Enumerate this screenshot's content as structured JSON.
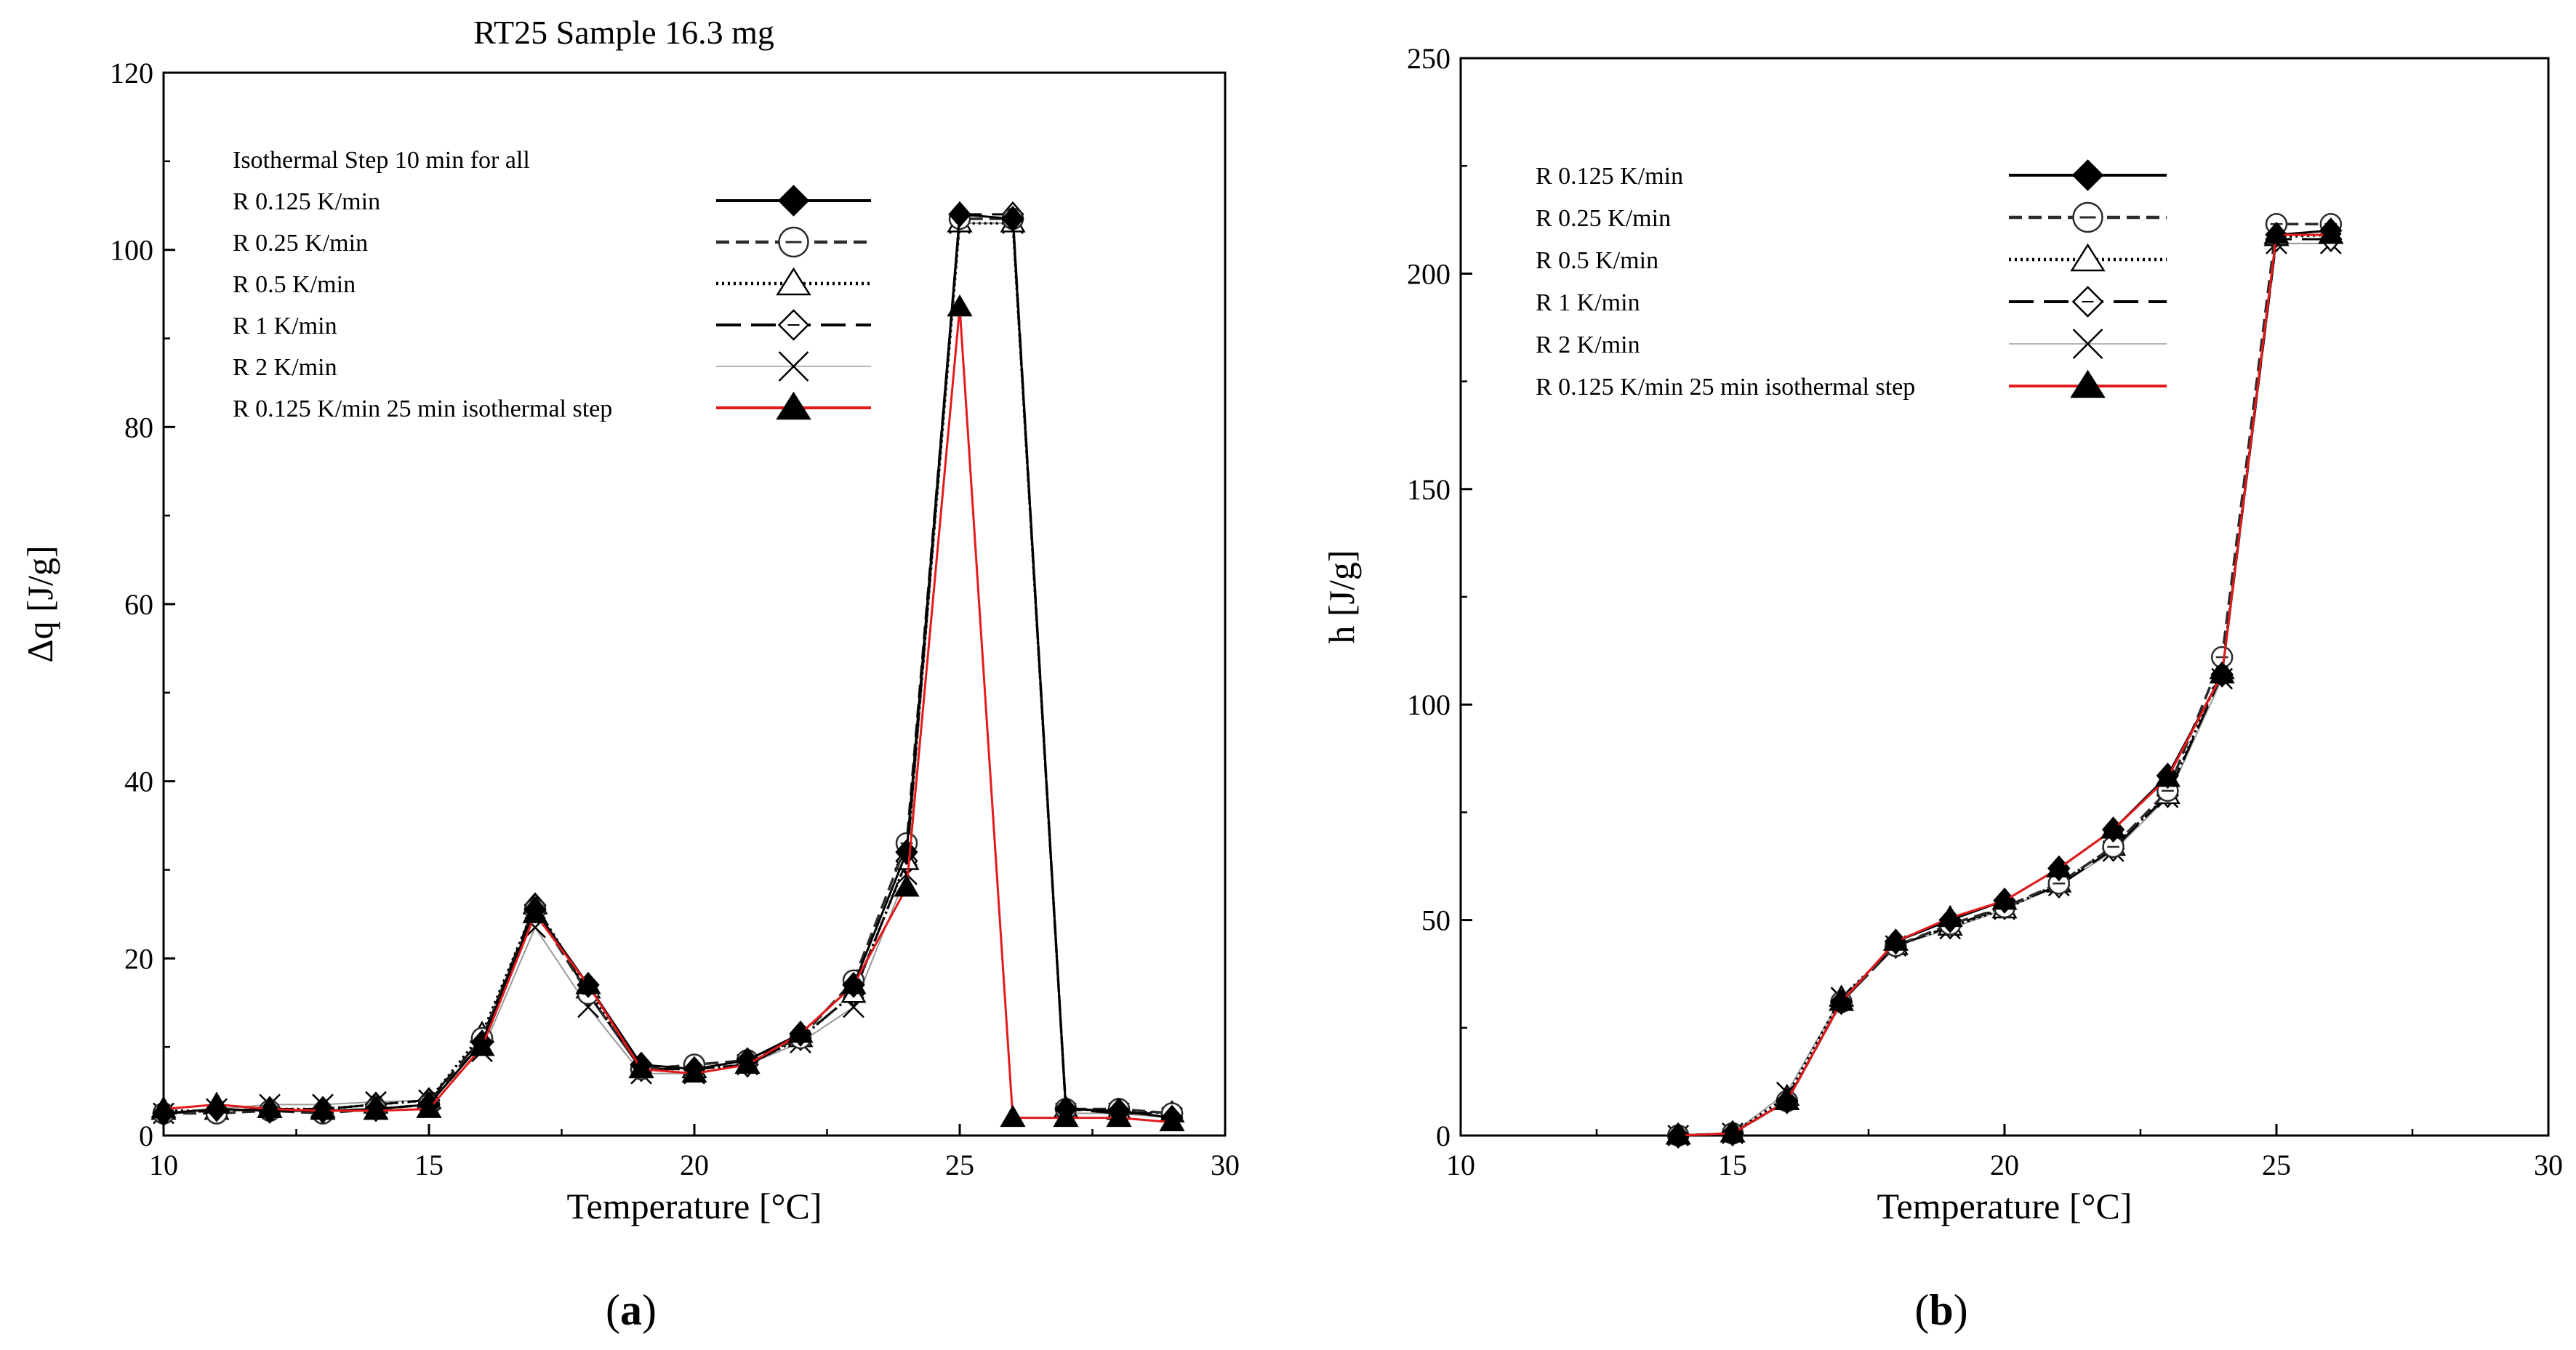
{
  "styles": {
    "0.125": {
      "color": "#000000",
      "dash": "",
      "width": 3,
      "marker": "diamond-filled"
    },
    "0.25": {
      "color": "#2b2b2b",
      "dash": "18 9",
      "width": 3.5,
      "marker": "circle-dash"
    },
    "0.5": {
      "color": "#000000",
      "dash": "3 5",
      "width": 3.5,
      "marker": "triangle-open"
    },
    "1": {
      "color": "#000000",
      "dash": "34 14",
      "width": 3,
      "marker": "diamond-open"
    },
    "2": {
      "color": "#9a9a9a",
      "dash": "",
      "width": 2,
      "marker": "cross"
    },
    "red": {
      "color": "#e31a1c",
      "dash": "",
      "width": 3,
      "marker": "triangle-filled"
    }
  },
  "chart_data": [
    {
      "id": "a",
      "type": "line",
      "panel_label": "a",
      "title": "RT25 Sample 16.3 mg",
      "xlabel": "Temperature [°C]",
      "ylabel": "Δq [J/g]",
      "xlim": [
        10,
        30
      ],
      "ylim": [
        0,
        120
      ],
      "xticks": [
        10,
        15,
        20,
        25,
        30
      ],
      "yticks": [
        0,
        20,
        40,
        60,
        80,
        100,
        120
      ],
      "legend_header": "Isothermal Step 10 min for all",
      "legend_placement": "top-left",
      "series": [
        {
          "name": "R 0.125 K/min",
          "style": "0.125",
          "x": [
            10,
            11,
            12,
            13,
            14,
            15,
            16,
            17,
            18,
            19,
            20,
            21,
            22,
            23,
            24,
            25,
            26,
            27,
            28,
            29
          ],
          "y": [
            2.5,
            3.0,
            2.8,
            2.8,
            3.0,
            3.5,
            10.5,
            25.5,
            17.0,
            8.0,
            7.5,
            8.5,
            11.5,
            17.0,
            32.0,
            104.0,
            103.5,
            3.0,
            2.8,
            2.0
          ]
        },
        {
          "name": "R 0.25 K/min",
          "style": "0.25",
          "x": [
            10,
            11,
            12,
            13,
            14,
            15,
            16,
            17,
            18,
            19,
            20,
            21,
            22,
            23,
            24,
            25,
            26,
            27,
            28,
            29
          ],
          "y": [
            2.5,
            2.5,
            2.8,
            2.5,
            3.0,
            3.5,
            11.0,
            25.5,
            16.0,
            7.5,
            8.0,
            8.5,
            11.0,
            17.5,
            33.0,
            103.5,
            103.5,
            3.0,
            3.0,
            2.5
          ]
        },
        {
          "name": "R 0.5 K/min",
          "style": "0.5",
          "x": [
            10,
            11,
            12,
            13,
            14,
            15,
            16,
            17,
            18,
            19,
            20,
            21,
            22,
            23,
            24,
            25,
            26,
            27,
            28,
            29
          ],
          "y": [
            2.8,
            2.8,
            3.0,
            3.0,
            3.5,
            4.0,
            11.5,
            26.0,
            16.5,
            7.5,
            7.5,
            8.0,
            11.0,
            16.0,
            31.0,
            103.0,
            103.0,
            3.0,
            2.8,
            2.5
          ]
        },
        {
          "name": "R 1 K/min",
          "style": "1",
          "x": [
            10,
            11,
            12,
            13,
            14,
            15,
            16,
            17,
            18,
            19,
            20,
            21,
            22,
            23,
            24,
            25,
            26,
            27,
            28,
            29
          ],
          "y": [
            2.5,
            2.8,
            3.0,
            3.0,
            3.5,
            4.0,
            11.0,
            26.0,
            16.0,
            7.5,
            7.5,
            8.0,
            11.0,
            16.0,
            31.0,
            104.0,
            104.0,
            3.0,
            2.5,
            2.5
          ]
        },
        {
          "name": "R 2 K/min",
          "style": "2",
          "x": [
            10,
            11,
            12,
            13,
            14,
            15,
            16,
            17,
            18,
            19,
            20,
            21,
            22,
            23,
            24,
            25,
            26,
            27,
            28,
            29
          ],
          "y": [
            2.5,
            3.0,
            3.5,
            3.5,
            3.8,
            4.0,
            9.5,
            23.5,
            14.5,
            7.0,
            7.0,
            8.0,
            10.5,
            14.5,
            29.5,
            103.0,
            103.0,
            2.5,
            2.5,
            2.0
          ]
        },
        {
          "name": "R 0.125  K/min 25 min isothermal step",
          "style": "red",
          "x": [
            10,
            11,
            12,
            13,
            14,
            15,
            16,
            17,
            18,
            19,
            20,
            21,
            22,
            23,
            24,
            25,
            26,
            27,
            28,
            29
          ],
          "y": [
            3.0,
            3.5,
            3.0,
            2.8,
            2.8,
            3.0,
            10.0,
            25.0,
            17.0,
            7.5,
            7.0,
            8.0,
            11.5,
            17.0,
            28.0,
            93.5,
            2.0,
            2.0,
            2.0,
            1.5
          ]
        }
      ]
    },
    {
      "id": "b",
      "type": "line",
      "panel_label": "b",
      "title": "",
      "xlabel": "Temperature [°C]",
      "ylabel": "h [J/g]",
      "xlim": [
        10,
        30
      ],
      "ylim": [
        0,
        250
      ],
      "xticks": [
        10,
        15,
        20,
        25,
        30
      ],
      "yticks": [
        0,
        50,
        100,
        150,
        200,
        250
      ],
      "legend_header": "",
      "legend_placement": "top-left",
      "series": [
        {
          "name": "R 0.125 K/min",
          "style": "0.125",
          "x": [
            14,
            15,
            16,
            17,
            18,
            19,
            20,
            21,
            22,
            23,
            24,
            25,
            26
          ],
          "y": [
            0,
            0.5,
            8,
            31,
            45,
            50,
            54.5,
            62,
            71,
            83.5,
            107,
            209,
            210
          ]
        },
        {
          "name": "R 0.25 K/min",
          "style": "0.25",
          "x": [
            14,
            15,
            16,
            17,
            18,
            19,
            20,
            21,
            22,
            23,
            24,
            25,
            26
          ],
          "y": [
            0,
            0.5,
            8,
            31,
            44,
            49,
            53,
            58.5,
            67,
            80,
            111,
            211.5,
            211.5
          ]
        },
        {
          "name": "R 0.5 K/min",
          "style": "0.5",
          "x": [
            14,
            15,
            16,
            17,
            18,
            19,
            20,
            21,
            22,
            23,
            24,
            25,
            26
          ],
          "y": [
            0,
            0.5,
            9,
            32,
            44,
            48.5,
            52.5,
            58.5,
            67,
            79,
            108,
            208.5,
            209
          ]
        },
        {
          "name": "R 1 K/min",
          "style": "1",
          "x": [
            14,
            15,
            16,
            17,
            18,
            19,
            20,
            21,
            22,
            23,
            24,
            25,
            26
          ],
          "y": [
            0,
            0.5,
            8,
            31,
            44,
            48.5,
            53,
            58,
            66.5,
            79,
            107,
            208,
            208
          ]
        },
        {
          "name": "R 2 K/min",
          "style": "2",
          "x": [
            14,
            15,
            16,
            17,
            18,
            19,
            20,
            21,
            22,
            23,
            24,
            25,
            26
          ],
          "y": [
            0,
            0.5,
            10,
            32,
            44,
            48,
            52.5,
            58,
            66,
            78.5,
            106,
            207,
            207
          ]
        },
        {
          "name": "R 0.125 K/min 25 min isothermal step",
          "style": "red",
          "x": [
            14,
            15,
            16,
            17,
            18,
            19,
            20,
            21,
            22,
            23,
            24,
            25,
            26
          ],
          "y": [
            0,
            0.5,
            8,
            31,
            45,
            50.5,
            54.5,
            62,
            71,
            83,
            107,
            209,
            209
          ]
        }
      ]
    }
  ]
}
